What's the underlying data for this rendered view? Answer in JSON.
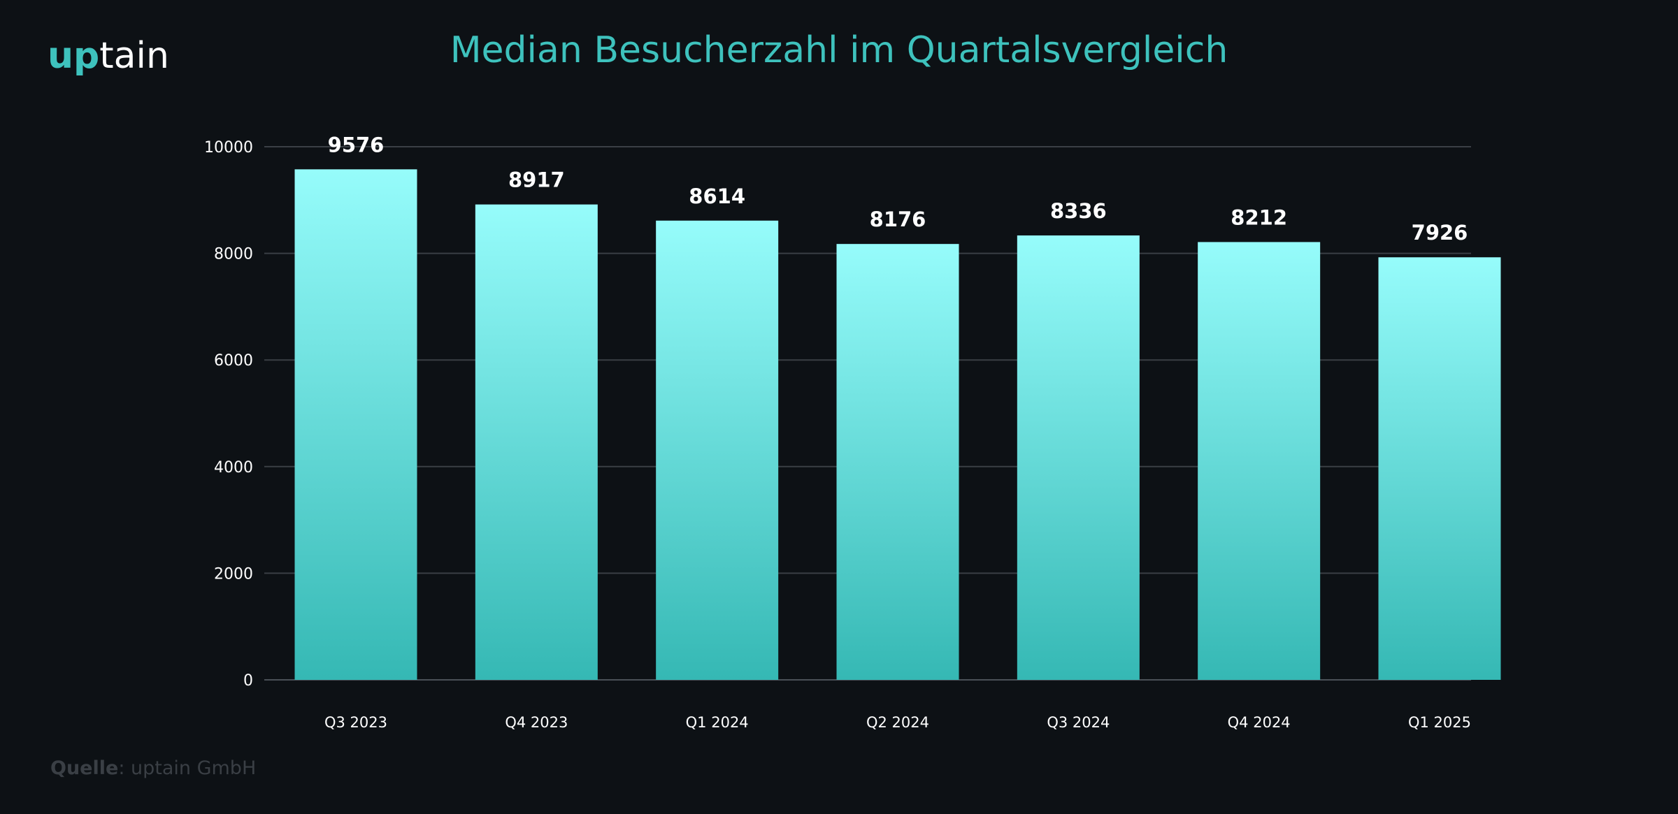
{
  "logo": {
    "part1": "up",
    "part2": "tain"
  },
  "source": {
    "label": "Quelle",
    "separator": ": ",
    "value": "uptain GmbH"
  },
  "colors": {
    "background": "#0d1115",
    "accent": "#3ec2bd",
    "bar_top": "#96fcfb",
    "bar_bottom": "#35b8b4",
    "grid": "#3a3f45"
  },
  "chart_data": {
    "type": "bar",
    "title": "Median Besucherzahl im Quartalsvergleich",
    "xlabel": "",
    "ylabel": "",
    "categories": [
      "Q3 2023",
      "Q4 2023",
      "Q1 2024",
      "Q2 2024",
      "Q3 2024",
      "Q4 2024",
      "Q1 2025"
    ],
    "values": [
      9576,
      8917,
      8614,
      8176,
      8336,
      8212,
      7926
    ],
    "ylim": [
      0,
      10000
    ],
    "yticks": [
      "0",
      "2000",
      "4000",
      "6000",
      "8000",
      "10000"
    ],
    "data_labels": true,
    "grid": true,
    "legend": false
  }
}
